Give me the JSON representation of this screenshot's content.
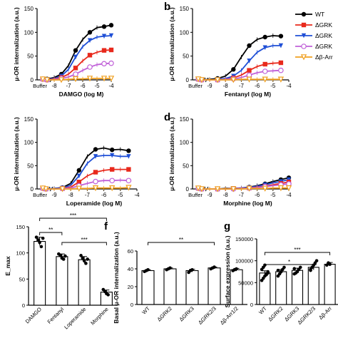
{
  "colors": {
    "WT": "#000000",
    "dGRK2": "#e8291c",
    "dGRK3": "#1f4fd6",
    "dGRK23": "#c060d8",
    "dbArr": "#f0a020"
  },
  "legend": {
    "items": [
      "WT",
      "ΔGRK",
      "ΔGRK",
      "ΔGRK",
      "Δβ-Arr"
    ]
  },
  "chart_data": [
    {
      "type": "line",
      "panel_label": "",
      "title": "",
      "xlabel": "DAMGO (log M)",
      "ylabel": "μ-OR internalization (a.u.)",
      "x_ticks": [
        "Buffer",
        "-8",
        "-7",
        "-6",
        "-5",
        "-4"
      ],
      "xlim": [
        -8.6,
        -4
      ],
      "ylim": [
        0,
        150
      ],
      "y_ticks": [
        0,
        50,
        100,
        150
      ],
      "x": [
        -8.5,
        -8,
        -7.5,
        -7,
        -6.5,
        -6,
        -5.5,
        -5,
        -4.5,
        -4
      ],
      "buffer": {
        "WT": 0,
        "dGRK2": 0,
        "dGRK3": 0,
        "dGRK23": 0,
        "dbArr": 0
      },
      "series": [
        {
          "key": "WT",
          "values": [
            2,
            5,
            12,
            30,
            62,
            85,
            100,
            110,
            112,
            115
          ]
        },
        {
          "key": "dGRK3",
          "values": [
            1,
            3,
            8,
            22,
            48,
            70,
            83,
            90,
            92,
            93
          ]
        },
        {
          "key": "dGRK2",
          "values": [
            0,
            2,
            5,
            12,
            25,
            40,
            52,
            58,
            62,
            63
          ]
        },
        {
          "key": "dGRK23",
          "values": [
            0,
            1,
            3,
            6,
            12,
            20,
            27,
            32,
            34,
            35
          ]
        },
        {
          "key": "dbArr",
          "values": [
            0,
            0,
            0,
            1,
            2,
            2,
            3,
            3,
            3,
            3
          ]
        }
      ]
    },
    {
      "type": "line",
      "panel_label": "b",
      "title": "",
      "xlabel": "Fentanyl (log M)",
      "ylabel": "μ-OR internalization (a.u.)",
      "x_ticks": [
        "Buffer",
        "-9",
        "-8",
        "-7",
        "-6",
        "-5",
        "-4"
      ],
      "xlim": [
        -9.6,
        -4
      ],
      "ylim": [
        0,
        150
      ],
      "y_ticks": [
        0,
        50,
        100,
        150
      ],
      "x": [
        -9.5,
        -9,
        -8.5,
        -8,
        -7.5,
        -7,
        -6.5,
        -6,
        -5.5,
        -5,
        -4.5
      ],
      "buffer": {
        "WT": 0,
        "dGRK2": 0,
        "dGRK3": 0,
        "dGRK23": 0,
        "dbArr": 0
      },
      "series": [
        {
          "key": "WT",
          "values": [
            0,
            1,
            3,
            8,
            22,
            48,
            72,
            85,
            90,
            93,
            92
          ]
        },
        {
          "key": "dGRK3",
          "values": [
            0,
            0,
            1,
            3,
            8,
            20,
            40,
            58,
            68,
            72,
            72
          ]
        },
        {
          "key": "dGRK2",
          "values": [
            0,
            0,
            0,
            1,
            4,
            10,
            20,
            28,
            33,
            35,
            36
          ]
        },
        {
          "key": "dGRK23",
          "values": [
            0,
            0,
            0,
            1,
            2,
            5,
            10,
            15,
            18,
            19,
            20
          ]
        },
        {
          "key": "dbArr",
          "values": [
            0,
            0,
            0,
            0,
            0,
            1,
            1,
            1,
            1,
            1,
            1
          ]
        }
      ]
    },
    {
      "type": "line",
      "panel_label": "",
      "title": "",
      "xlabel": "Loperamide (log M)",
      "ylabel": "μ-OR internalization (a.u.)",
      "x_ticks": [
        "Buffer",
        "-9",
        "-8",
        "-7",
        "-6",
        "-5",
        "-4"
      ],
      "xlim": [
        -9.6,
        -4
      ],
      "ylim": [
        0,
        150
      ],
      "y_ticks": [
        0,
        50,
        100,
        150
      ],
      "x": [
        -9.5,
        -9,
        -8.5,
        -8,
        -7.5,
        -7,
        -6.5,
        -6,
        -5.5,
        -5,
        -4.5
      ],
      "buffer": {
        "WT": 0,
        "dGRK2": 0,
        "dGRK3": 0,
        "dGRK23": 0,
        "dbArr": 0
      },
      "series": [
        {
          "key": "WT",
          "values": [
            0,
            1,
            3,
            12,
            40,
            70,
            85,
            88,
            84,
            85,
            82
          ]
        },
        {
          "key": "dGRK3",
          "values": [
            0,
            1,
            2,
            8,
            28,
            55,
            70,
            72,
            72,
            70,
            70
          ]
        },
        {
          "key": "dGRK2",
          "values": [
            0,
            0,
            1,
            4,
            15,
            28,
            36,
            40,
            42,
            42,
            42
          ]
        },
        {
          "key": "dGRK23",
          "values": [
            0,
            0,
            1,
            2,
            7,
            12,
            16,
            18,
            18,
            19,
            18
          ]
        },
        {
          "key": "dbArr",
          "values": [
            0,
            0,
            0,
            0,
            1,
            1,
            2,
            2,
            2,
            2,
            3
          ]
        }
      ]
    },
    {
      "type": "line",
      "panel_label": "d",
      "title": "",
      "xlabel": "Morphine (log M)",
      "ylabel": "μ-OR internalization (a.u.)",
      "x_ticks": [
        "Buffer",
        "-9",
        "-8",
        "-7",
        "-6",
        "-5",
        "-4"
      ],
      "xlim": [
        -9.6,
        -4
      ],
      "ylim": [
        0,
        150
      ],
      "y_ticks": [
        0,
        50,
        100,
        150
      ],
      "x": [
        -9.5,
        -9,
        -8.5,
        -8,
        -7.5,
        -7,
        -6.5,
        -6,
        -5.5,
        -5,
        -4.5,
        -4
      ],
      "buffer": {
        "WT": 0,
        "dGRK2": 0,
        "dGRK3": 0,
        "dGRK23": 0,
        "dbArr": 0
      },
      "series": [
        {
          "key": "WT",
          "values": [
            0,
            0,
            0,
            1,
            1,
            2,
            4,
            7,
            11,
            16,
            20,
            24
          ]
        },
        {
          "key": "dGRK3",
          "values": [
            0,
            0,
            0,
            0,
            1,
            2,
            3,
            6,
            9,
            13,
            16,
            20
          ]
        },
        {
          "key": "dGRK2",
          "values": [
            0,
            0,
            0,
            0,
            1,
            1,
            2,
            4,
            6,
            9,
            12,
            15
          ]
        },
        {
          "key": "dGRK23",
          "values": [
            0,
            0,
            0,
            0,
            0,
            1,
            2,
            3,
            5,
            7,
            9,
            11
          ]
        },
        {
          "key": "dbArr",
          "values": [
            0,
            0,
            0,
            0,
            0,
            0,
            1,
            1,
            1,
            2,
            2,
            2
          ]
        }
      ]
    },
    {
      "type": "bar",
      "panel_label": "",
      "title": "",
      "xlabel": "",
      "ylabel": "E_max",
      "categories": [
        "DAMGO",
        "Fentanyl",
        "Loperamide",
        "Morphine"
      ],
      "values": [
        122,
        93,
        87,
        25
      ],
      "errors": [
        8,
        5,
        6,
        4
      ],
      "points": [
        [
          130,
          125,
          120,
          112,
          128
        ],
        [
          98,
          95,
          90,
          88,
          94
        ],
        [
          95,
          90,
          85,
          80,
          88
        ],
        [
          30,
          26,
          22,
          20
        ]
      ],
      "ylim": [
        0,
        150
      ],
      "y_ticks": [
        0,
        50,
        100,
        150
      ],
      "significance": [
        "***",
        "**",
        "***"
      ]
    },
    {
      "type": "bar",
      "panel_label": "f",
      "title": "",
      "xlabel": "",
      "ylabel": "Basal μ-OR internalization (a.u.)",
      "categories": [
        "WT",
        "ΔGRK2",
        "ΔGRK3",
        "ΔGRK2/3",
        "Δβ-Arr1/2"
      ],
      "values": [
        38,
        40,
        38,
        41,
        39
      ],
      "errors": [
        1,
        1,
        1.5,
        1,
        1.5
      ],
      "points": [
        [
          37,
          38,
          39
        ],
        [
          39,
          40,
          41
        ],
        [
          36,
          38,
          39
        ],
        [
          40,
          41,
          42
        ],
        [
          38,
          39,
          40
        ]
      ],
      "ylim": [
        0,
        60
      ],
      "y_ticks": [
        0,
        20,
        40,
        60
      ],
      "significance": [
        "**"
      ]
    },
    {
      "type": "bar",
      "panel_label": "g",
      "title": "",
      "xlabel": "",
      "ylabel": "Surface expression (a.u.)",
      "categories": [
        "WT",
        "ΔGRK2",
        "ΔGRK3",
        "ΔGRK2/3",
        "Δβ-Arr"
      ],
      "values": [
        72000,
        75000,
        78000,
        85000,
        92000
      ],
      "errors": [
        5000,
        5000,
        5000,
        6000,
        4000
      ],
      "points": [
        [
          55000,
          60000,
          65000,
          70000,
          75000,
          80000,
          85000,
          90000,
          68000,
          72000
        ],
        [
          65000,
          70000,
          75000,
          80000,
          85000,
          78000
        ],
        [
          70000,
          72000,
          75000,
          80000,
          85000,
          82000
        ],
        [
          78000,
          85000,
          90000,
          95000,
          100000,
          80000
        ],
        [
          90000,
          95000,
          92000
        ]
      ],
      "ylim": [
        0,
        150000
      ],
      "y_ticks": [
        "0",
        "50000",
        "100000",
        "150000"
      ],
      "significance": [
        "***",
        "*"
      ]
    }
  ]
}
